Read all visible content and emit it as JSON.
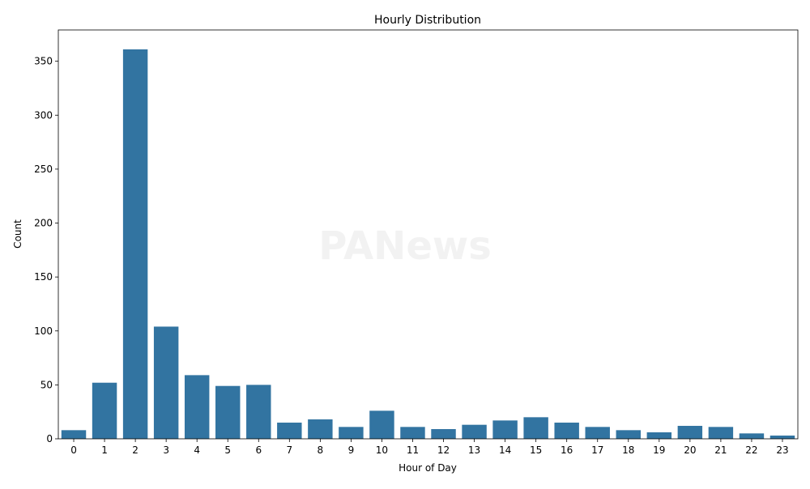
{
  "chart_data": {
    "type": "bar",
    "title": "Hourly Distribution",
    "xlabel": "Hour of Day",
    "ylabel": "Count",
    "categories": [
      "0",
      "1",
      "2",
      "3",
      "4",
      "5",
      "6",
      "7",
      "8",
      "9",
      "10",
      "11",
      "12",
      "13",
      "14",
      "15",
      "16",
      "17",
      "18",
      "19",
      "20",
      "21",
      "22",
      "23"
    ],
    "values": [
      8,
      52,
      361,
      104,
      59,
      49,
      50,
      15,
      18,
      11,
      26,
      11,
      9,
      13,
      17,
      20,
      15,
      11,
      8,
      6,
      12,
      11,
      5,
      3
    ],
    "ylim": [
      0,
      379
    ],
    "yticks": [
      0,
      50,
      100,
      150,
      200,
      250,
      300,
      350
    ],
    "grid": false,
    "bar_color": "#3274a1"
  },
  "watermark": "PANews"
}
